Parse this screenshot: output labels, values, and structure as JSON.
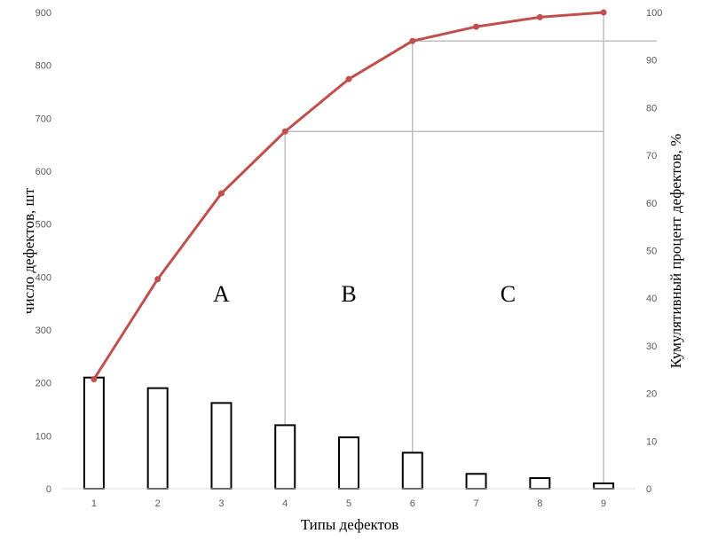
{
  "chart_data": {
    "type": "bar",
    "categories": [
      "1",
      "2",
      "3",
      "4",
      "5",
      "6",
      "7",
      "8",
      "9"
    ],
    "series": [
      {
        "type": "bar",
        "values": [
          210,
          190,
          162,
          120,
          97,
          68,
          28,
          20,
          10
        ],
        "color": "#000000"
      },
      {
        "type": "line",
        "axis": "right",
        "values": [
          23,
          44,
          62,
          75,
          86,
          94,
          97,
          99,
          100
        ],
        "color": "#C0504D"
      }
    ],
    "xlabel": "Типы дефектов",
    "ylabel": "число дефектов, шт",
    "y2label": "Кумулятивный процент дефектов, %",
    "ylim": [
      0,
      900
    ],
    "y2lim": [
      0,
      100
    ],
    "yticks": [
      "0",
      "100",
      "200",
      "300",
      "400",
      "500",
      "600",
      "700",
      "800",
      "900"
    ],
    "y2ticks": [
      "0",
      "10",
      "20",
      "30",
      "40",
      "50",
      "60",
      "70",
      "80",
      "90",
      "100"
    ],
    "grid": false,
    "reference_lines": [
      {
        "category": "4",
        "percent": 75
      },
      {
        "category": "6",
        "percent": 94
      },
      {
        "category": "9",
        "percent": 100
      }
    ],
    "regions": [
      {
        "label": "A",
        "x": 3
      },
      {
        "label": "B",
        "x": 5
      },
      {
        "label": "C",
        "x": 7.5
      }
    ]
  }
}
